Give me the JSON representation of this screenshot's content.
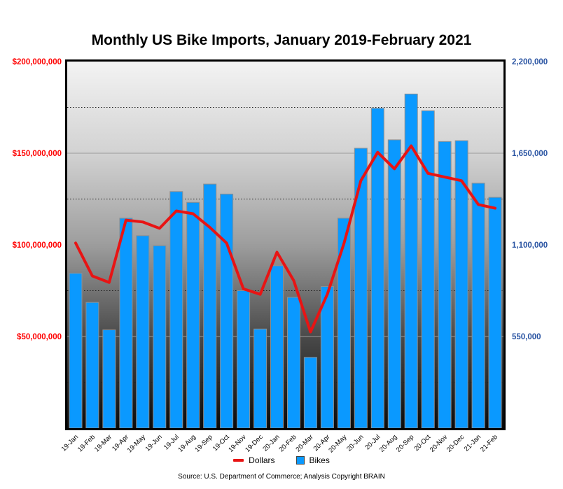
{
  "title": "Monthly US Bike Imports, January 2019-February 2021",
  "legend": {
    "dollars_label": "Dollars",
    "bikes_label": "Bikes"
  },
  "source": "Source: U.S. Department of Commerce; Analysis Copyright BRAIN",
  "colors": {
    "bar_fill": "#0a99ff",
    "bar_stroke": "#8f8f8f",
    "line": "#e81414",
    "left_axis_text": "#ff0000",
    "right_axis_text": "#2b55a3",
    "major_gridline": "#9b9b9b",
    "minor_gridline": "#1f1f1f",
    "plot_border": "#000000"
  },
  "chart_data": {
    "type": "bar",
    "subtype": "bar-with-line-overlay",
    "categories": [
      "19-Jan",
      "19-Feb",
      "19-Mar",
      "19-Apr",
      "19-May",
      "19-Jun",
      "19-Jul",
      "19-Aug",
      "19-Sep",
      "19-Oct",
      "19-Nov",
      "19-Dec",
      "20-Jan",
      "20-Feb",
      "20-Mar",
      "20-Apr",
      "20-May",
      "20-Jun",
      "20-Jul",
      "20-Aug",
      "20-Sep",
      "20-Oct",
      "20-Nov",
      "20-Dec",
      "21-Jan",
      "21-Feb"
    ],
    "series": [
      {
        "name": "Bikes",
        "type": "bar",
        "axis": "right",
        "values": [
          930000,
          755000,
          590000,
          1260000,
          1155000,
          1095000,
          1420000,
          1355000,
          1465000,
          1405000,
          825000,
          595000,
          975000,
          785000,
          425000,
          850000,
          1260000,
          1680000,
          1920000,
          1730000,
          2005000,
          1905000,
          1720000,
          1725000,
          1470000,
          1385000
        ]
      },
      {
        "name": "Dollars",
        "type": "line",
        "axis": "left",
        "values": [
          101000000,
          83000000,
          79500000,
          113500000,
          112500000,
          109000000,
          118500000,
          117000000,
          109500000,
          101000000,
          76000000,
          73000000,
          96000000,
          80500000,
          52500000,
          73000000,
          101000000,
          135000000,
          150500000,
          141500000,
          154000000,
          139000000,
          137000000,
          135000000,
          122000000,
          120000000
        ]
      }
    ],
    "left_axis": {
      "min": 0,
      "max": 200000000,
      "ticks": [
        {
          "value": 200000000,
          "label": "$200,000,000"
        },
        {
          "value": 150000000,
          "label": "$150,000,000"
        },
        {
          "value": 100000000,
          "label": "$100,000,000"
        },
        {
          "value": 50000000,
          "label": "$50,000,000"
        }
      ]
    },
    "right_axis": {
      "min": 0,
      "max": 2200000,
      "ticks": [
        {
          "value": 2200000,
          "label": "2,200,000"
        },
        {
          "value": 1650000,
          "label": "1,650,000"
        },
        {
          "value": 1100000,
          "label": "1,100,000"
        },
        {
          "value": 550000,
          "label": "550,000"
        }
      ]
    },
    "gridlines": {
      "major_step": 50000000,
      "minor_step": 25000000,
      "major_style": "solid-gray",
      "minor_style": "dotted-black"
    },
    "legend_position": "bottom-center",
    "plot_background": "vertical-gradient-light-to-dark"
  }
}
